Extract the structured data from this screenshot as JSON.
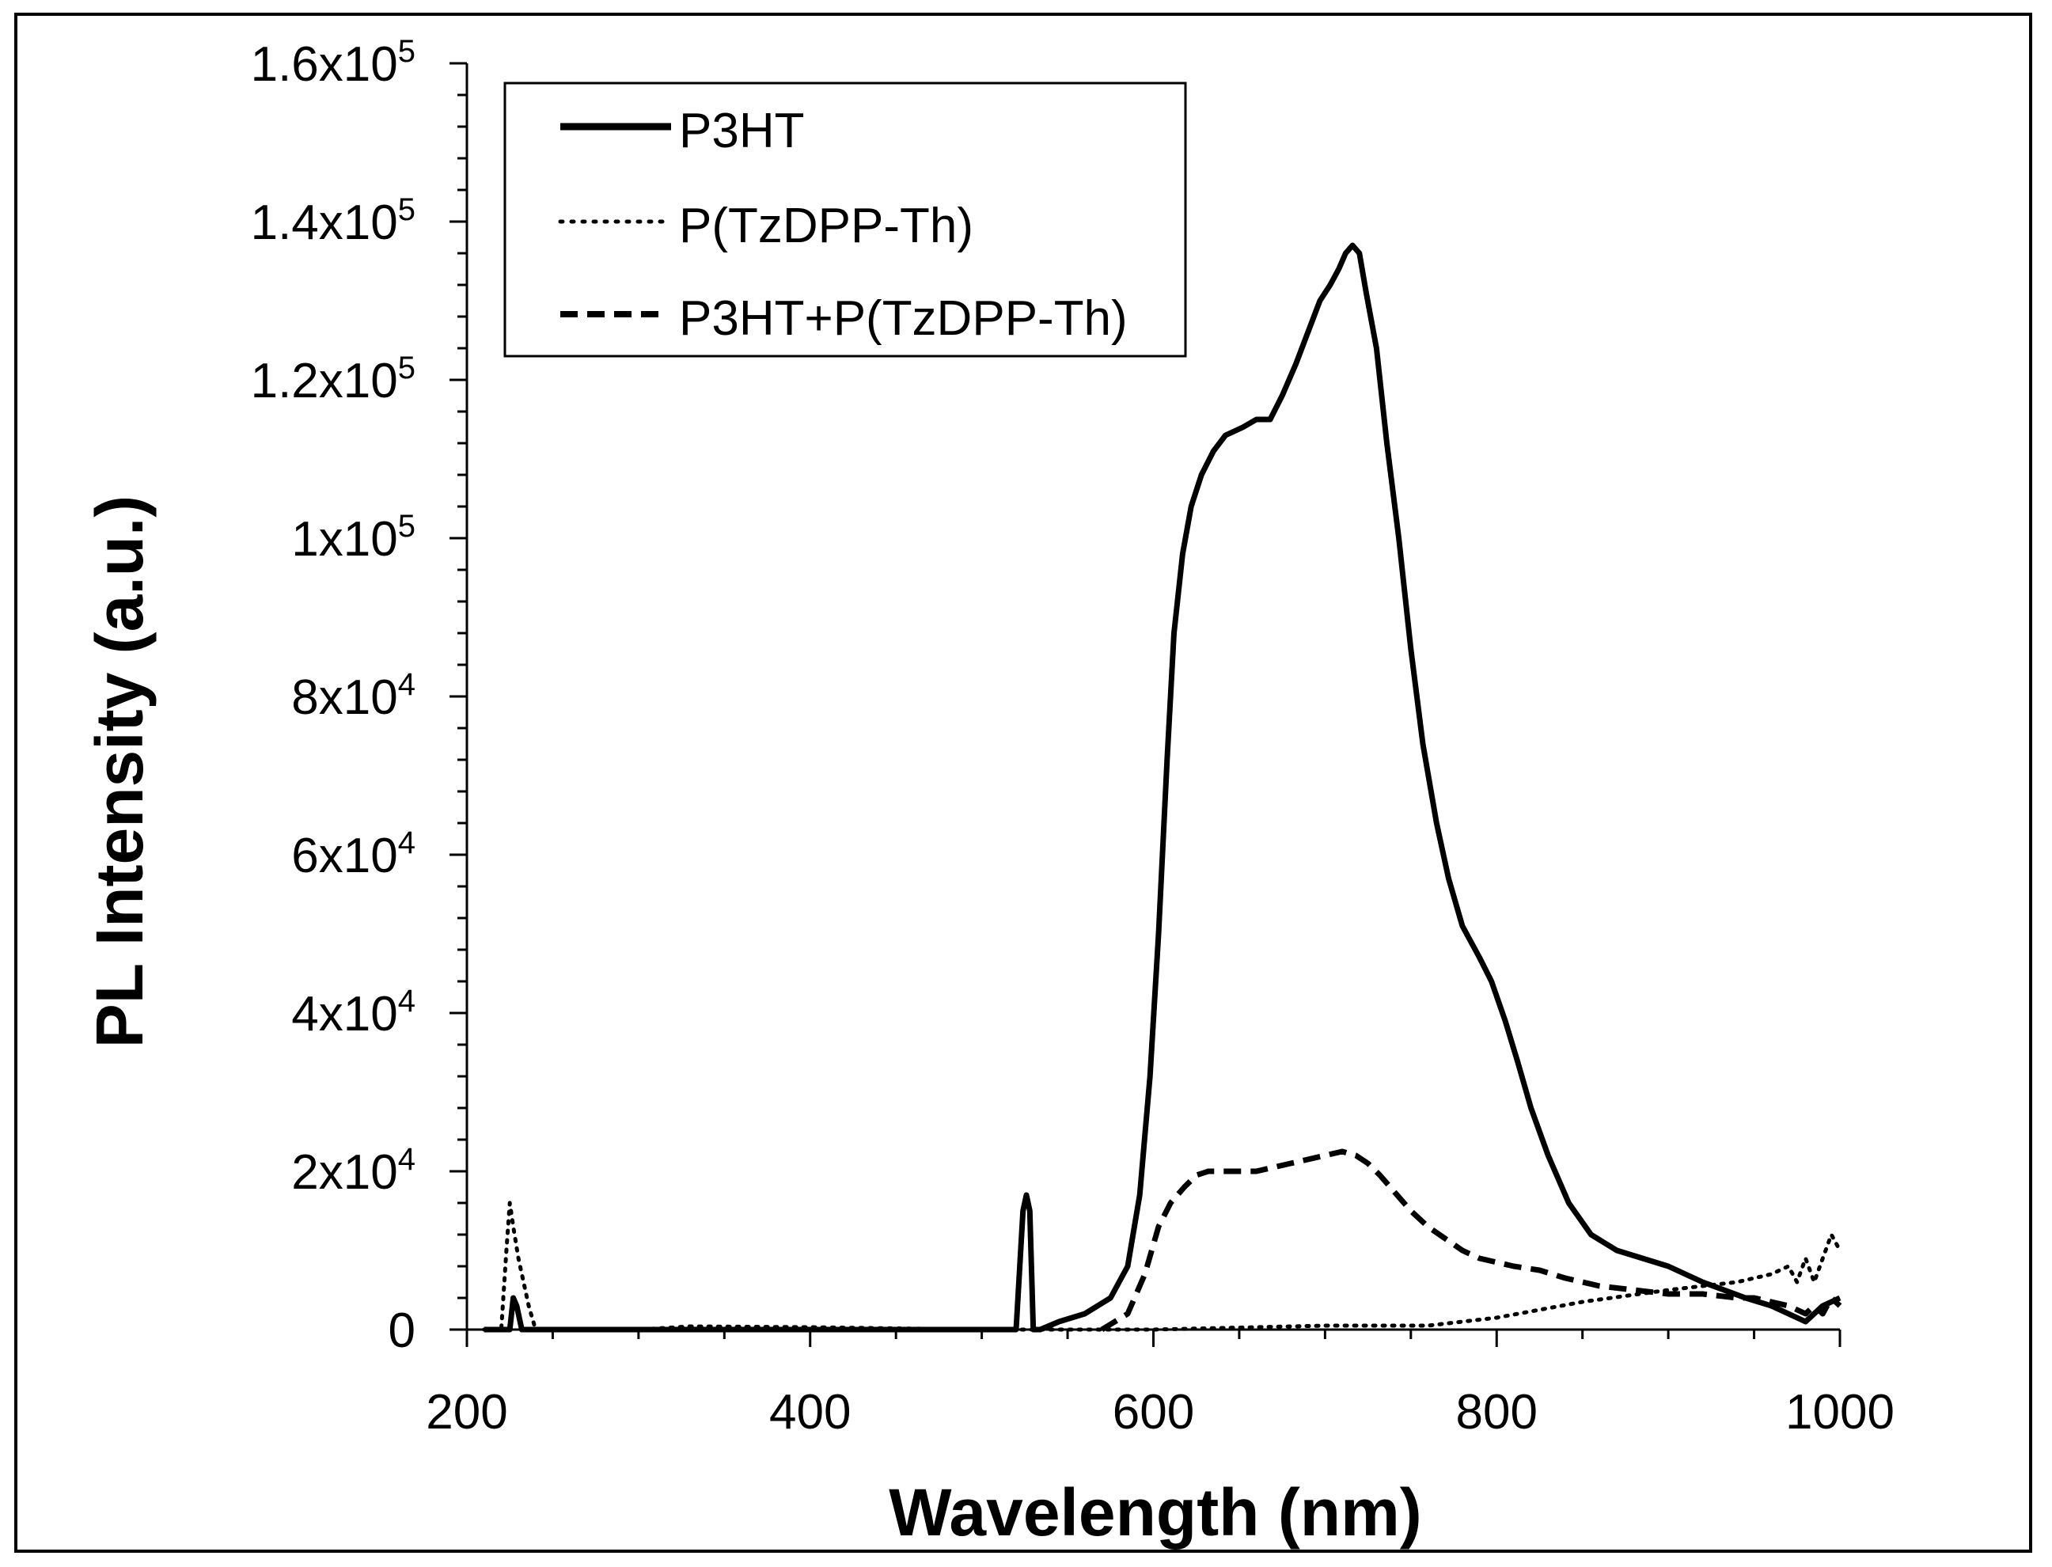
{
  "chart_data": {
    "type": "line",
    "title": "",
    "xlabel": "Wavelength (nm)",
    "ylabel": "PL Intensity (a.u.)",
    "xlim": [
      200,
      1000
    ],
    "ylim": [
      0,
      160000
    ],
    "grid": false,
    "legend_position": "top-left",
    "x_ticks": [
      200,
      400,
      600,
      800,
      1000
    ],
    "x_tick_labels": [
      "200",
      "400",
      "600",
      "800",
      "1000"
    ],
    "y_ticks": [
      {
        "value": 0,
        "mantissa": "0",
        "exponent": ""
      },
      {
        "value": 20000,
        "mantissa": "2x10",
        "exponent": "4"
      },
      {
        "value": 40000,
        "mantissa": "4x10",
        "exponent": "4"
      },
      {
        "value": 60000,
        "mantissa": "6x10",
        "exponent": "4"
      },
      {
        "value": 80000,
        "mantissa": "8x10",
        "exponent": "4"
      },
      {
        "value": 100000,
        "mantissa": "1x10",
        "exponent": "5"
      },
      {
        "value": 120000,
        "mantissa": "1.2x10",
        "exponent": "5"
      },
      {
        "value": 140000,
        "mantissa": "1.4x10",
        "exponent": "5"
      },
      {
        "value": 160000,
        "mantissa": "1.6x10",
        "exponent": "5"
      }
    ],
    "series": [
      {
        "name": "P3HT",
        "style": "solid",
        "color": "#000000",
        "x": [
          210,
          225,
          227,
          229,
          232,
          236,
          245,
          300,
          400,
          520,
          524,
          526,
          528,
          530,
          534,
          545,
          560,
          575,
          585,
          592,
          598,
          603,
          608,
          612,
          617,
          622,
          628,
          635,
          642,
          652,
          660,
          668,
          675,
          683,
          690,
          697,
          703,
          708,
          712,
          716,
          720,
          724,
          730,
          736,
          743,
          750,
          757,
          765,
          772,
          780,
          790,
          797,
          805,
          812,
          820,
          830,
          842,
          855,
          870,
          885,
          900,
          920,
          945,
          960,
          970,
          980,
          990,
          1000
        ],
        "y": [
          0,
          0,
          4000,
          3000,
          0,
          0,
          0,
          0,
          0,
          0,
          15000,
          17000,
          15000,
          0,
          0,
          1000,
          2000,
          4000,
          8000,
          17000,
          32000,
          50000,
          72000,
          88000,
          98000,
          104000,
          108000,
          111000,
          113000,
          114000,
          115000,
          115000,
          118000,
          122000,
          126000,
          130000,
          132000,
          134000,
          136000,
          137000,
          136000,
          131000,
          124000,
          112000,
          100000,
          86000,
          74000,
          64000,
          57000,
          51000,
          47000,
          44000,
          39000,
          34000,
          28000,
          22000,
          16000,
          12000,
          10000,
          9000,
          8000,
          6000,
          4000,
          3000,
          2000,
          1000,
          3000,
          4000
        ]
      },
      {
        "name": "P(TzDPP-Th)",
        "style": "dotted",
        "color": "#000000",
        "x": [
          210,
          220,
          223,
          225,
          227,
          230,
          233,
          236,
          240,
          250,
          300,
          330,
          400,
          500,
          600,
          700,
          760,
          800,
          850,
          900,
          940,
          960,
          970,
          975,
          980,
          985,
          990,
          995,
          1000
        ],
        "y": [
          0,
          0,
          10000,
          16000,
          13000,
          9000,
          6000,
          3000,
          0,
          0,
          0,
          400,
          300,
          0,
          0,
          500,
          500,
          1500,
          3500,
          5000,
          6000,
          7000,
          8000,
          6000,
          9000,
          6000,
          9000,
          12000,
          10000
        ]
      },
      {
        "name": "P3HT+P(TzDPP-Th)",
        "style": "dashed",
        "color": "#000000",
        "x": [
          570,
          585,
          595,
          603,
          610,
          618,
          625,
          632,
          640,
          650,
          660,
          670,
          680,
          690,
          700,
          710,
          718,
          725,
          732,
          740,
          750,
          760,
          770,
          780,
          790,
          800,
          810,
          825,
          840,
          860,
          880,
          900,
          920,
          940,
          950,
          960,
          970,
          975,
          980,
          985,
          990,
          995,
          1000
        ],
        "y": [
          0,
          2000,
          7000,
          13000,
          16000,
          18000,
          19500,
          20000,
          20000,
          20000,
          20000,
          20500,
          21000,
          21500,
          22000,
          22500,
          22000,
          21000,
          19500,
          17500,
          15000,
          13000,
          11500,
          10000,
          9000,
          8500,
          8000,
          7500,
          6500,
          5500,
          5000,
          4500,
          4500,
          4000,
          4000,
          3500,
          3000,
          2500,
          2000,
          3000,
          2000,
          4000,
          3000
        ]
      }
    ]
  }
}
